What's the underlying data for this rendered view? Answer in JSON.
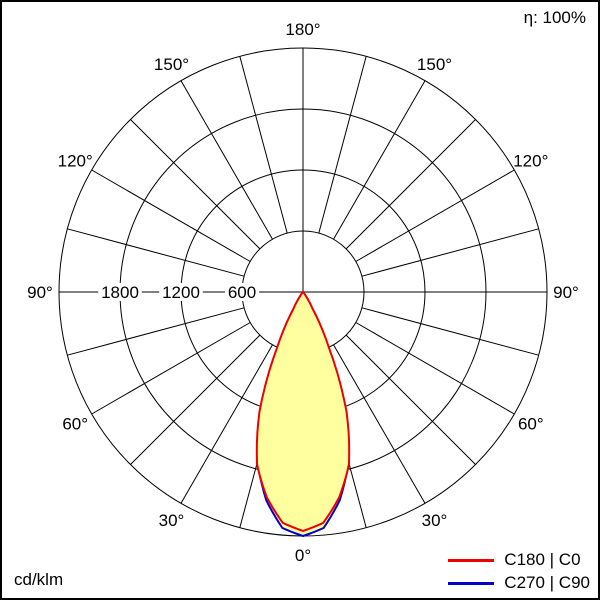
{
  "meta": {
    "efficiency_label": "η: 100%",
    "unit_label": "cd/klm"
  },
  "legend": [
    {
      "label": "C180 | C0",
      "color": "#ee0000"
    },
    {
      "label": "C270 | C90",
      "color": "#0000cc"
    }
  ],
  "chart_data": {
    "type": "polar",
    "unit": "cd/klm",
    "angle_step_deg": 15,
    "angle_labels_deg": [
      0,
      30,
      60,
      90,
      120,
      150,
      180
    ],
    "r_grid": [
      600,
      1200,
      1800,
      2400
    ],
    "r_max": 2400,
    "radial_tick_labels": [
      {
        "value": 1800,
        "label": "1800"
      },
      {
        "value": 1200,
        "label": "1200"
      },
      {
        "value": 600,
        "label": "600"
      }
    ],
    "fill_color": "#ffffa0",
    "grid_color": "#000000",
    "series": [
      {
        "name": "C180 | C0",
        "color": "#ee0000",
        "gamma_deg": [
          0,
          5,
          10,
          15,
          20,
          25,
          30,
          35,
          40,
          45,
          60,
          90,
          120,
          150,
          180
        ],
        "values": [
          2350,
          2280,
          2050,
          1750,
          1250,
          600,
          180,
          50,
          10,
          0,
          0,
          0,
          0,
          0,
          0
        ]
      },
      {
        "name": "C270 | C90",
        "color": "#0000cc",
        "gamma_deg": [
          0,
          5,
          10,
          15,
          20,
          25,
          30,
          35,
          40,
          45,
          60,
          90,
          120,
          150,
          180
        ],
        "values": [
          2400,
          2330,
          2080,
          1730,
          1200,
          560,
          150,
          35,
          5,
          0,
          0,
          0,
          0,
          0,
          0
        ]
      }
    ]
  }
}
